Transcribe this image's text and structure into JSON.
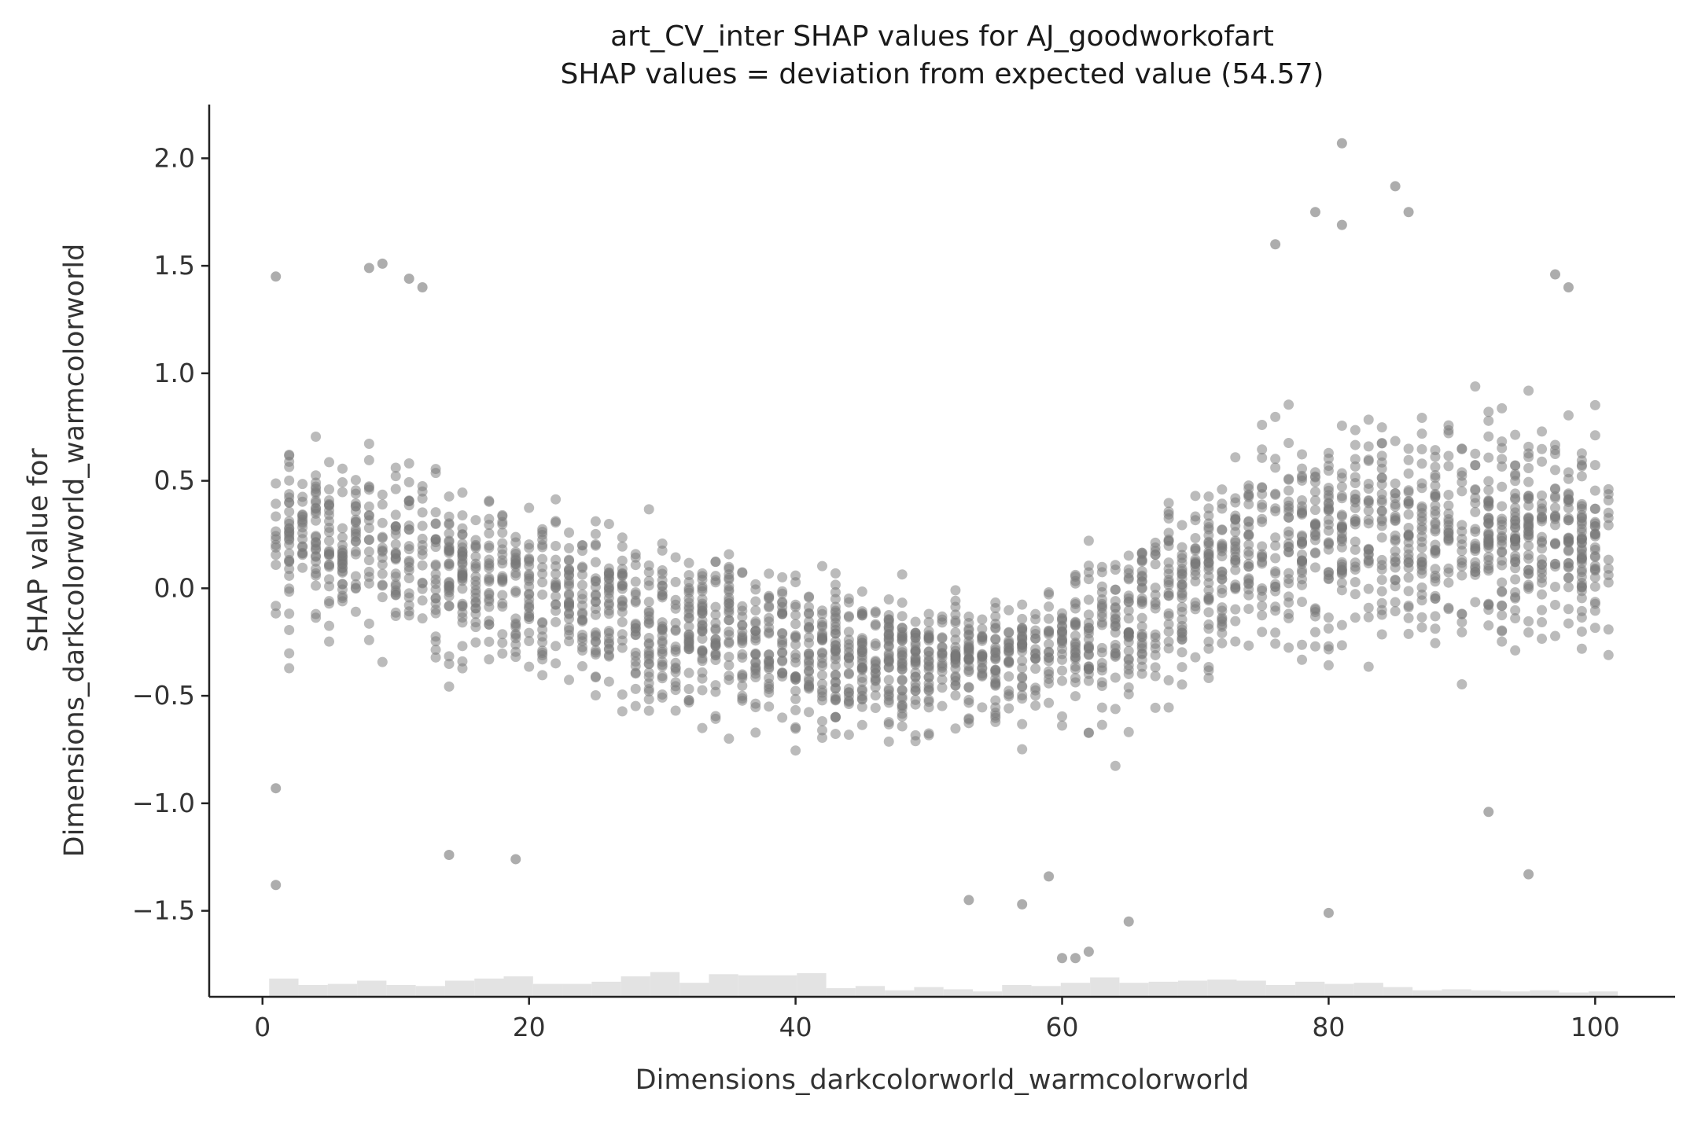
{
  "chart_data": {
    "type": "scatter",
    "title": "art_CV_inter SHAP values for AJ_goodworkofart",
    "subtitle": "SHAP values = deviation from expected value (54.57)",
    "xlabel": "Dimensions_darkcolorworld_warmcolorworld",
    "ylabel_line1": "SHAP value for",
    "ylabel_line2": "Dimensions_darkcolorworld_warmcolorworld",
    "xlim": [
      -4,
      106
    ],
    "ylim": [
      -1.9,
      2.25
    ],
    "x_ticks": [
      0,
      20,
      40,
      60,
      80,
      100
    ],
    "x_tick_labels": [
      "0",
      "20",
      "40",
      "60",
      "80",
      "100"
    ],
    "y_ticks": [
      -1.5,
      -1.0,
      -0.5,
      0.0,
      0.5,
      1.0,
      1.5,
      2.0
    ],
    "y_tick_labels": [
      "−1.5",
      "−1.0",
      "−0.5",
      "0.0",
      "0.5",
      "1.0",
      "1.5",
      "2.0"
    ],
    "grid": false,
    "colors": {
      "points": "#777777",
      "histogram": "#e3e3e3",
      "axes": "#222222"
    },
    "histogram": {
      "x_min": 0.5,
      "bin_width": 2.2,
      "heights": [
        0.085,
        0.055,
        0.06,
        0.075,
        0.055,
        0.05,
        0.075,
        0.085,
        0.095,
        0.06,
        0.06,
        0.07,
        0.095,
        0.115,
        0.065,
        0.105,
        0.1,
        0.1,
        0.11,
        0.04,
        0.05,
        0.03,
        0.045,
        0.035,
        0.025,
        0.055,
        0.05,
        0.065,
        0.09,
        0.065,
        0.07,
        0.075,
        0.08,
        0.075,
        0.055,
        0.07,
        0.06,
        0.065,
        0.045,
        0.03,
        0.035,
        0.03,
        0.025,
        0.03,
        0.02,
        0.025
      ],
      "heights_unit": "SHAP-axis units above the bottom spine"
    },
    "notable_points": [
      {
        "x": 81,
        "y": 2.07
      },
      {
        "x": 85,
        "y": 1.87
      },
      {
        "x": 86,
        "y": 1.75
      },
      {
        "x": 79,
        "y": 1.75
      },
      {
        "x": 81,
        "y": 1.69
      },
      {
        "x": 76,
        "y": 1.6
      },
      {
        "x": 9,
        "y": 1.51
      },
      {
        "x": 8,
        "y": 1.49
      },
      {
        "x": 97,
        "y": 1.46
      },
      {
        "x": 1,
        "y": 1.45
      },
      {
        "x": 11,
        "y": 1.44
      },
      {
        "x": 12,
        "y": 1.4
      },
      {
        "x": 98,
        "y": 1.4
      },
      {
        "x": 1,
        "y": -0.93
      },
      {
        "x": 1,
        "y": -1.38
      },
      {
        "x": 14,
        "y": -1.24
      },
      {
        "x": 19,
        "y": -1.26
      },
      {
        "x": 53,
        "y": -1.45
      },
      {
        "x": 57,
        "y": -1.47
      },
      {
        "x": 59,
        "y": -1.34
      },
      {
        "x": 60,
        "y": -1.72
      },
      {
        "x": 61,
        "y": -1.72
      },
      {
        "x": 62,
        "y": -1.69
      },
      {
        "x": 65,
        "y": -1.55
      },
      {
        "x": 80,
        "y": -1.51
      },
      {
        "x": 95,
        "y": -1.33
      },
      {
        "x": 92,
        "y": -1.04
      }
    ],
    "trend": {
      "description_points": [
        {
          "x": 1,
          "y": 0.25
        },
        {
          "x": 10,
          "y": 0.2
        },
        {
          "x": 20,
          "y": 0.0
        },
        {
          "x": 30,
          "y": -0.15
        },
        {
          "x": 40,
          "y": -0.3
        },
        {
          "x": 50,
          "y": -0.35
        },
        {
          "x": 60,
          "y": -0.3
        },
        {
          "x": 67,
          "y": -0.1
        },
        {
          "x": 75,
          "y": 0.2
        },
        {
          "x": 85,
          "y": 0.3
        },
        {
          "x": 101,
          "y": 0.25
        }
      ]
    },
    "point_count_estimate": 2600
  }
}
